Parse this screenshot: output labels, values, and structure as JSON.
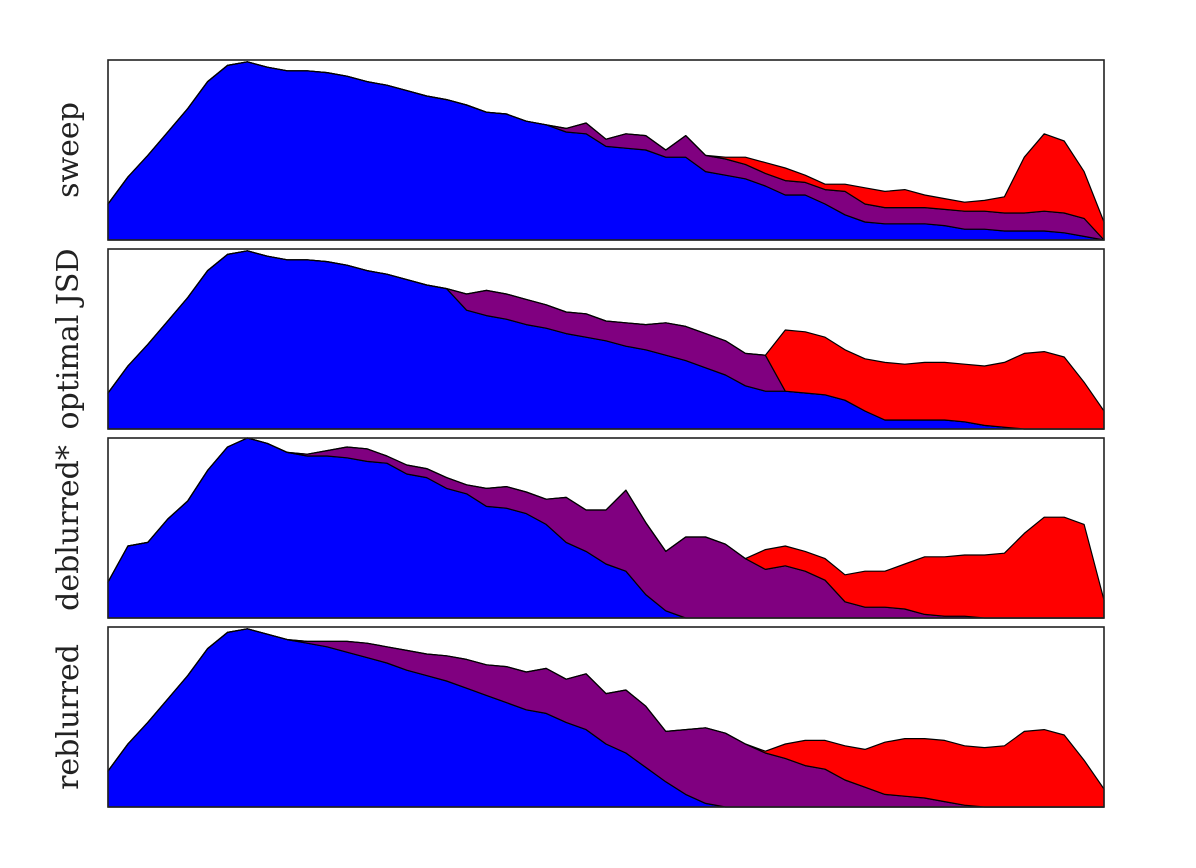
{
  "colors": {
    "blue": "#0000ff",
    "purple": "#800080",
    "red": "#ff0000",
    "outline": "#000000"
  },
  "chart_data": [
    {
      "type": "area",
      "stacking": "stacked",
      "ylabel": "sweep",
      "x": [
        0,
        1,
        2,
        3,
        4,
        5,
        6,
        7,
        8,
        9,
        10,
        11,
        12,
        13,
        14,
        15,
        16,
        17,
        18,
        19,
        20,
        21,
        22,
        23,
        24,
        25,
        26,
        27,
        28,
        29,
        30,
        31,
        32,
        33,
        34,
        35,
        36,
        37,
        38,
        39,
        40,
        41,
        42,
        43,
        44,
        45,
        46,
        47,
        48,
        49,
        50
      ],
      "xlim": [
        0,
        50
      ],
      "ylim": [
        0,
        100
      ],
      "series": [
        {
          "color": "blue",
          "values": [
            20,
            35,
            47,
            60,
            73,
            88,
            97,
            99,
            96,
            94,
            94,
            93,
            91,
            88,
            86,
            83,
            80,
            78,
            75,
            71,
            70,
            66,
            64,
            60,
            59,
            52,
            51,
            50,
            46,
            46,
            38,
            36,
            34,
            30,
            25,
            25,
            20,
            14,
            10,
            9,
            9,
            9,
            8,
            6,
            6,
            5,
            5,
            5,
            4,
            2,
            0
          ]
        },
        {
          "color": "purple",
          "values": [
            0,
            0,
            0,
            0,
            0,
            0,
            0,
            0,
            0,
            0,
            0,
            0,
            0,
            0,
            0,
            0,
            0,
            0,
            0,
            0,
            0,
            0,
            0,
            2,
            6,
            4,
            8,
            8,
            4,
            12,
            9,
            9,
            8,
            7,
            8,
            7,
            8,
            13,
            10,
            9,
            9,
            9,
            9,
            10,
            10,
            10,
            10,
            11,
            11,
            10,
            0
          ]
        },
        {
          "color": "red",
          "values": [
            0,
            0,
            0,
            0,
            0,
            0,
            0,
            0,
            0,
            0,
            0,
            0,
            0,
            0,
            0,
            0,
            0,
            0,
            0,
            0,
            0,
            0,
            0,
            0,
            0,
            0,
            0,
            0,
            0,
            0,
            0,
            1,
            4,
            6,
            7,
            4,
            3,
            4,
            9,
            9,
            10,
            7,
            6,
            5,
            6,
            9,
            31,
            43,
            40,
            26,
            10
          ]
        }
      ]
    },
    {
      "type": "area",
      "stacking": "stacked",
      "ylabel": "optimal JSD",
      "x": [
        0,
        1,
        2,
        3,
        4,
        5,
        6,
        7,
        8,
        9,
        10,
        11,
        12,
        13,
        14,
        15,
        16,
        17,
        18,
        19,
        20,
        21,
        22,
        23,
        24,
        25,
        26,
        27,
        28,
        29,
        30,
        31,
        32,
        33,
        34,
        35,
        36,
        37,
        38,
        39,
        40,
        41,
        42,
        43,
        44,
        45,
        46,
        47,
        48,
        49,
        50
      ],
      "xlim": [
        0,
        50
      ],
      "ylim": [
        0,
        100
      ],
      "series": [
        {
          "color": "blue",
          "values": [
            20,
            35,
            47,
            60,
            73,
            88,
            97,
            99,
            96,
            94,
            94,
            93,
            91,
            88,
            86,
            83,
            80,
            78,
            66,
            63,
            61,
            58,
            56,
            53,
            51,
            49,
            46,
            44,
            41,
            38,
            34,
            30,
            24,
            21,
            21,
            20,
            19,
            16,
            10,
            5,
            5,
            5,
            5,
            4,
            2,
            1,
            0,
            0,
            0,
            0,
            0
          ]
        },
        {
          "color": "purple",
          "values": [
            0,
            0,
            0,
            0,
            0,
            0,
            0,
            0,
            0,
            0,
            0,
            0,
            0,
            0,
            0,
            0,
            0,
            0,
            9,
            14,
            14,
            14,
            13,
            12,
            13,
            11,
            13,
            14,
            18,
            19,
            19,
            19,
            18,
            20,
            0,
            0,
            0,
            0,
            0,
            0,
            0,
            0,
            0,
            0,
            0,
            0,
            0,
            0,
            0,
            0,
            0
          ]
        },
        {
          "color": "red",
          "values": [
            0,
            0,
            0,
            0,
            0,
            0,
            0,
            0,
            0,
            0,
            0,
            0,
            0,
            0,
            0,
            0,
            0,
            0,
            0,
            0,
            0,
            0,
            0,
            0,
            0,
            0,
            0,
            0,
            0,
            0,
            0,
            0,
            0,
            0,
            34,
            34,
            32,
            28,
            29,
            32,
            31,
            32,
            32,
            32,
            33,
            36,
            42,
            43,
            40,
            26,
            10
          ]
        }
      ]
    },
    {
      "type": "area",
      "stacking": "stacked",
      "ylabel": "deblurred*",
      "x": [
        0,
        1,
        2,
        3,
        4,
        5,
        6,
        7,
        8,
        9,
        10,
        11,
        12,
        13,
        14,
        15,
        16,
        17,
        18,
        19,
        20,
        21,
        22,
        23,
        24,
        25,
        26,
        27,
        28,
        29,
        30,
        31,
        32,
        33,
        34,
        35,
        36,
        37,
        38,
        39,
        40,
        41,
        42,
        43,
        44,
        45,
        46,
        47,
        48,
        49,
        50
      ],
      "xlim": [
        0,
        50
      ],
      "ylim": [
        0,
        100
      ],
      "series": [
        {
          "color": "blue",
          "values": [
            20,
            40,
            42,
            55,
            65,
            82,
            95,
            100,
            97,
            92,
            90,
            90,
            89,
            87,
            86,
            80,
            78,
            72,
            69,
            62,
            61,
            58,
            52,
            42,
            37,
            30,
            26,
            13,
            4,
            0,
            0,
            0,
            0,
            0,
            0,
            0,
            0,
            0,
            0,
            0,
            0,
            0,
            0,
            0,
            0,
            0,
            0,
            0,
            0,
            0,
            0
          ]
        },
        {
          "color": "purple",
          "values": [
            0,
            0,
            0,
            0,
            0,
            0,
            0,
            0,
            0,
            0,
            1,
            3,
            6,
            7,
            4,
            5,
            5,
            6,
            5,
            10,
            12,
            12,
            14,
            25,
            23,
            30,
            45,
            40,
            33,
            45,
            45,
            41,
            33,
            27,
            29,
            26,
            21,
            9,
            6,
            6,
            5,
            2,
            1,
            1,
            0,
            0,
            0,
            0,
            0,
            0,
            0
          ]
        },
        {
          "color": "red",
          "values": [
            0,
            0,
            0,
            0,
            0,
            0,
            0,
            0,
            0,
            0,
            0,
            0,
            0,
            0,
            0,
            0,
            0,
            0,
            0,
            0,
            0,
            0,
            0,
            0,
            0,
            0,
            0,
            0,
            0,
            0,
            0,
            0,
            0,
            11,
            11,
            11,
            12,
            15,
            20,
            20,
            25,
            32,
            33,
            34,
            35,
            36,
            47,
            56,
            56,
            52,
            10
          ]
        }
      ]
    },
    {
      "type": "area",
      "stacking": "stacked",
      "ylabel": "reblurred",
      "x": [
        0,
        1,
        2,
        3,
        4,
        5,
        6,
        7,
        8,
        9,
        10,
        11,
        12,
        13,
        14,
        15,
        16,
        17,
        18,
        19,
        20,
        21,
        22,
        23,
        24,
        25,
        26,
        27,
        28,
        29,
        30,
        31,
        32,
        33,
        34,
        35,
        36,
        37,
        38,
        39,
        40,
        41,
        42,
        43,
        44,
        45,
        46,
        47,
        48,
        49,
        50
      ],
      "xlim": [
        0,
        50
      ],
      "ylim": [
        0,
        100
      ],
      "series": [
        {
          "color": "blue",
          "values": [
            20,
            35,
            47,
            60,
            73,
            88,
            97,
            99,
            96,
            93,
            91,
            89,
            86,
            83,
            80,
            76,
            73,
            70,
            66,
            62,
            58,
            54,
            52,
            47,
            43,
            35,
            30,
            22,
            14,
            7,
            2,
            0,
            0,
            0,
            0,
            0,
            0,
            0,
            0,
            0,
            0,
            0,
            0,
            0,
            0,
            0,
            0,
            0,
            0,
            0,
            0
          ]
        },
        {
          "color": "purple",
          "values": [
            0,
            0,
            0,
            0,
            0,
            0,
            0,
            0,
            0,
            0,
            1,
            3,
            6,
            8,
            9,
            11,
            12,
            14,
            16,
            17,
            20,
            21,
            25,
            24,
            31,
            28,
            35,
            34,
            28,
            36,
            42,
            41,
            35,
            30,
            27,
            23,
            21,
            15,
            11,
            7,
            6,
            5,
            3,
            1,
            0,
            0,
            0,
            0,
            0,
            0,
            0
          ]
        },
        {
          "color": "red",
          "values": [
            0,
            0,
            0,
            0,
            0,
            0,
            0,
            0,
            0,
            0,
            0,
            0,
            0,
            0,
            0,
            0,
            0,
            0,
            0,
            0,
            0,
            0,
            0,
            0,
            0,
            0,
            0,
            0,
            0,
            0,
            0,
            0,
            0,
            1,
            8,
            14,
            16,
            19,
            21,
            29,
            32,
            33,
            34,
            33,
            33,
            34,
            42,
            43,
            40,
            26,
            10
          ]
        }
      ]
    }
  ]
}
